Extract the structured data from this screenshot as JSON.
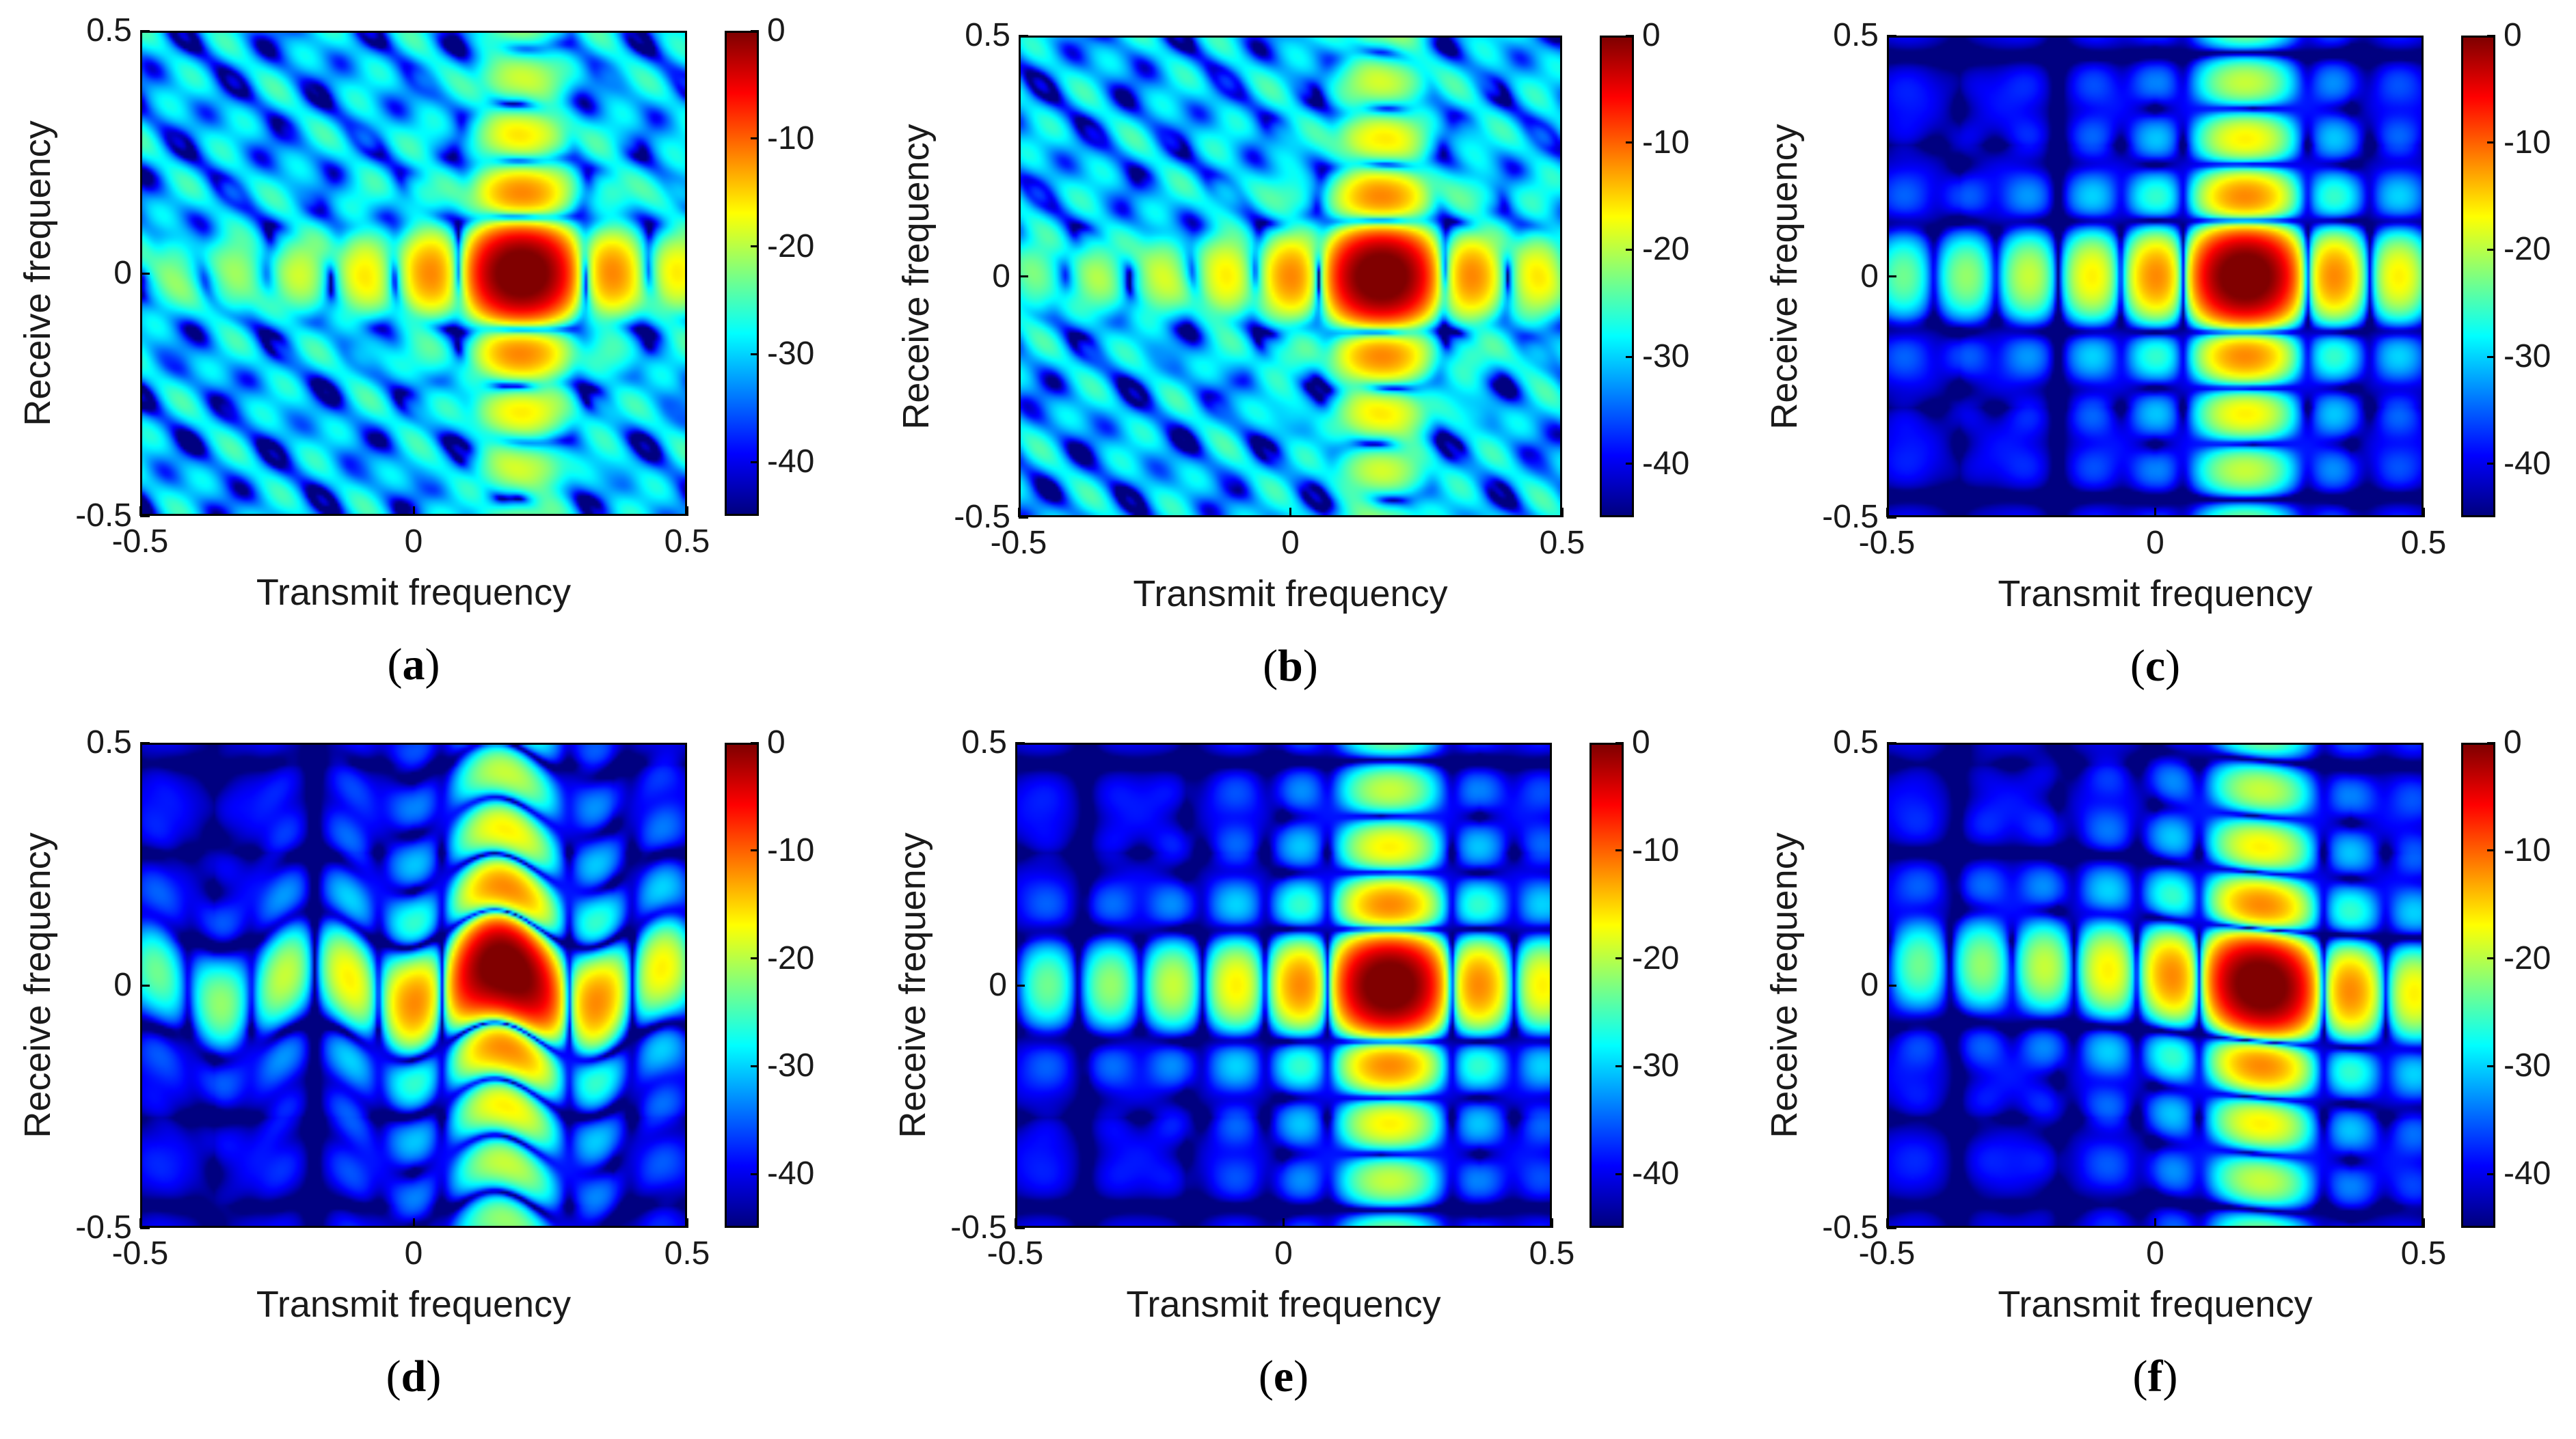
{
  "chart_data": [
    {
      "type": "heatmap",
      "panel": "a",
      "caption_letter": "a",
      "xlabel": "Transmit frequency",
      "ylabel": "Receive frequency",
      "xlim": [
        -0.5,
        0.5
      ],
      "ylim": [
        -0.5,
        0.5
      ],
      "xticks": [
        "-0.5",
        "0",
        "0.5"
      ],
      "yticks": [
        "-0.5",
        "0",
        "0.5"
      ],
      "colorbar": {
        "min": -45,
        "max": 0,
        "ticks": [
          "0",
          "-10",
          "-20",
          "-30",
          "-40"
        ],
        "colormap": "jet"
      },
      "peak": {
        "transmit": 0.2,
        "receive": 0.0,
        "value": 0
      },
      "pattern": "irregular sidelobes with a strong ridge along transmit frequency 0.2 and receive frequency 0"
    },
    {
      "type": "heatmap",
      "panel": "b",
      "caption_letter": "b",
      "xlabel": "Transmit frequency",
      "ylabel": "Receive frequency",
      "xlim": [
        -0.5,
        0.5
      ],
      "ylim": [
        -0.5,
        0.5
      ],
      "xticks": [
        "-0.5",
        "0",
        "0.5"
      ],
      "yticks": [
        "-0.5",
        "0",
        "0.5"
      ],
      "colorbar": {
        "min": -45,
        "max": 0,
        "ticks": [
          "0",
          "-10",
          "-20",
          "-30",
          "-40"
        ],
        "colormap": "jet"
      },
      "peak": {
        "transmit": 0.17,
        "receive": 0.0,
        "value": 0
      },
      "pattern": "irregular sidelobes with a strong ridge along transmit frequency 0.17 and receive frequency 0"
    },
    {
      "type": "heatmap",
      "panel": "c",
      "caption_letter": "c",
      "xlabel": "Transmit frequency",
      "ylabel": "Receive frequency",
      "xlim": [
        -0.5,
        0.5
      ],
      "ylim": [
        -0.5,
        0.5
      ],
      "xticks": [
        "-0.5",
        "0",
        "0.5"
      ],
      "yticks": [
        "-0.5",
        "0",
        "0.5"
      ],
      "colorbar": {
        "min": -45,
        "max": 0,
        "ticks": [
          "0",
          "-10",
          "-20",
          "-30",
          "-40"
        ],
        "colormap": "jet"
      },
      "peak": {
        "transmit": 0.17,
        "receive": 0.0,
        "value": 0
      },
      "pattern": "regular grid of sidelobes with deep nulls"
    },
    {
      "type": "heatmap",
      "panel": "d",
      "caption_letter": "d",
      "xlabel": "Transmit frequency",
      "ylabel": "Receive frequency",
      "xlim": [
        -0.5,
        0.5
      ],
      "ylim": [
        -0.5,
        0.5
      ],
      "xticks": [
        "-0.5",
        "0",
        "0.5"
      ],
      "yticks": [
        "-0.5",
        "0",
        "0.5"
      ],
      "colorbar": {
        "min": -45,
        "max": 0,
        "ticks": [
          "0",
          "-10",
          "-20",
          "-30",
          "-40"
        ],
        "colormap": "jet"
      },
      "peak": {
        "transmit": 0.17,
        "receive": 0.0,
        "value": 0
      },
      "pattern": "grid of sidelobes with curved null lines"
    },
    {
      "type": "heatmap",
      "panel": "e",
      "caption_letter": "e",
      "xlabel": "Transmit frequency",
      "ylabel": "Receive frequency",
      "xlim": [
        -0.5,
        0.5
      ],
      "ylim": [
        -0.5,
        0.5
      ],
      "xticks": [
        "-0.5",
        "0",
        "0.5"
      ],
      "yticks": [
        "-0.5",
        "0",
        "0.5"
      ],
      "colorbar": {
        "min": -45,
        "max": 0,
        "ticks": [
          "0",
          "-10",
          "-20",
          "-30",
          "-40"
        ],
        "colormap": "jet"
      },
      "peak": {
        "transmit": 0.2,
        "receive": 0.0,
        "value": 0
      },
      "pattern": "regular grid of sidelobes with deep nulls"
    },
    {
      "type": "heatmap",
      "panel": "f",
      "caption_letter": "f",
      "xlabel": "Transmit frequency",
      "ylabel": "Receive frequency",
      "xlim": [
        -0.5,
        0.5
      ],
      "ylim": [
        -0.5,
        0.5
      ],
      "xticks": [
        "-0.5",
        "0",
        "0.5"
      ],
      "yticks": [
        "-0.5",
        "0",
        "0.5"
      ],
      "colorbar": {
        "min": -45,
        "max": 0,
        "ticks": [
          "0",
          "-10",
          "-20",
          "-30",
          "-40"
        ],
        "colormap": "jet"
      },
      "peak": {
        "transmit": 0.2,
        "receive": 0.0,
        "value": 0
      },
      "pattern": "grid of sidelobes with sloped null lines"
    }
  ]
}
